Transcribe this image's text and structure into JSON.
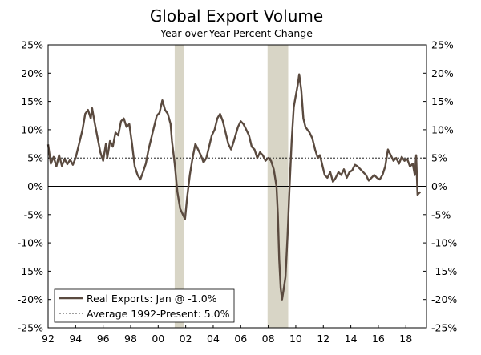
{
  "chart_data": {
    "type": "line",
    "title": "Global Export Volume",
    "subtitle": "Year-over-Year Percent Change",
    "x_tick_labels": [
      "92",
      "94",
      "96",
      "98",
      "00",
      "02",
      "04",
      "06",
      "08",
      "10",
      "12",
      "14",
      "16",
      "18"
    ],
    "x_tick_years": [
      1992,
      1994,
      1996,
      1998,
      2000,
      2002,
      2004,
      2006,
      2008,
      2010,
      2012,
      2014,
      2016,
      2018
    ],
    "xlim": [
      1992,
      2019.5
    ],
    "y_tick_labels": [
      "25%",
      "20%",
      "15%",
      "10%",
      "5%",
      "0%",
      "-5%",
      "-10%",
      "-15%",
      "-20%",
      "-25%"
    ],
    "y_tick_values": [
      25,
      20,
      15,
      10,
      5,
      0,
      -5,
      -10,
      -15,
      -20,
      -25
    ],
    "ylim": [
      -25,
      25
    ],
    "recessions": [
      [
        2001.2,
        2001.9
      ],
      [
        2007.95,
        2009.45
      ]
    ],
    "average_value": 5.0,
    "colors": {
      "line": "#5a4a3f",
      "recession": "#d8d5c6",
      "axis": "#000000"
    },
    "series": [
      {
        "name": "Real Exports: Jan @ -1.0%",
        "points": [
          [
            1992.0,
            7.4
          ],
          [
            1992.2,
            4.0
          ],
          [
            1992.4,
            5.2
          ],
          [
            1992.6,
            3.5
          ],
          [
            1992.8,
            5.5
          ],
          [
            1993.0,
            3.6
          ],
          [
            1993.2,
            4.8
          ],
          [
            1993.4,
            3.9
          ],
          [
            1993.6,
            4.7
          ],
          [
            1993.8,
            3.8
          ],
          [
            1994.0,
            5.0
          ],
          [
            1994.3,
            8.0
          ],
          [
            1994.5,
            10.0
          ],
          [
            1994.7,
            12.8
          ],
          [
            1994.9,
            13.5
          ],
          [
            1995.1,
            12.0
          ],
          [
            1995.2,
            13.8
          ],
          [
            1995.4,
            11.0
          ],
          [
            1995.6,
            8.5
          ],
          [
            1995.8,
            6.0
          ],
          [
            1996.0,
            4.5
          ],
          [
            1996.2,
            7.5
          ],
          [
            1996.3,
            5.0
          ],
          [
            1996.5,
            8.0
          ],
          [
            1996.7,
            7.0
          ],
          [
            1996.9,
            9.5
          ],
          [
            1997.1,
            9.0
          ],
          [
            1997.3,
            11.5
          ],
          [
            1997.5,
            12.0
          ],
          [
            1997.7,
            10.5
          ],
          [
            1997.9,
            11.0
          ],
          [
            1998.1,
            7.5
          ],
          [
            1998.3,
            3.5
          ],
          [
            1998.5,
            2.0
          ],
          [
            1998.7,
            1.2
          ],
          [
            1998.9,
            2.5
          ],
          [
            1999.1,
            4.0
          ],
          [
            1999.3,
            6.5
          ],
          [
            1999.6,
            9.5
          ],
          [
            1999.9,
            12.5
          ],
          [
            2000.1,
            13.0
          ],
          [
            2000.3,
            15.2
          ],
          [
            2000.5,
            13.5
          ],
          [
            2000.7,
            12.8
          ],
          [
            2000.9,
            11.0
          ],
          [
            2001.0,
            8.0
          ],
          [
            2001.2,
            4.0
          ],
          [
            2001.4,
            -1.0
          ],
          [
            2001.6,
            -4.0
          ],
          [
            2001.8,
            -5.0
          ],
          [
            2001.95,
            -5.8
          ],
          [
            2002.1,
            -2.0
          ],
          [
            2002.3,
            2.0
          ],
          [
            2002.5,
            5.0
          ],
          [
            2002.7,
            7.5
          ],
          [
            2002.9,
            6.5
          ],
          [
            2003.1,
            5.5
          ],
          [
            2003.3,
            4.2
          ],
          [
            2003.5,
            5.0
          ],
          [
            2003.7,
            7.0
          ],
          [
            2003.9,
            9.0
          ],
          [
            2004.1,
            10.0
          ],
          [
            2004.3,
            12.0
          ],
          [
            2004.5,
            12.8
          ],
          [
            2004.7,
            11.5
          ],
          [
            2004.9,
            9.5
          ],
          [
            2005.1,
            7.5
          ],
          [
            2005.3,
            6.5
          ],
          [
            2005.5,
            8.0
          ],
          [
            2005.8,
            10.5
          ],
          [
            2006.0,
            11.5
          ],
          [
            2006.2,
            11.0
          ],
          [
            2006.4,
            10.0
          ],
          [
            2006.6,
            9.0
          ],
          [
            2006.8,
            7.0
          ],
          [
            2007.0,
            6.5
          ],
          [
            2007.2,
            5.0
          ],
          [
            2007.4,
            6.0
          ],
          [
            2007.6,
            5.5
          ],
          [
            2007.8,
            4.5
          ],
          [
            2008.0,
            5.0
          ],
          [
            2008.2,
            4.5
          ],
          [
            2008.4,
            3.0
          ],
          [
            2008.6,
            0.0
          ],
          [
            2008.7,
            -5.0
          ],
          [
            2008.8,
            -13.0
          ],
          [
            2008.9,
            -18.0
          ],
          [
            2009.0,
            -20.0
          ],
          [
            2009.1,
            -18.5
          ],
          [
            2009.25,
            -16.0
          ],
          [
            2009.4,
            -9.0
          ],
          [
            2009.55,
            0.0
          ],
          [
            2009.7,
            8.0
          ],
          [
            2009.85,
            14.0
          ],
          [
            2010.0,
            16.0
          ],
          [
            2010.15,
            18.0
          ],
          [
            2010.25,
            19.8
          ],
          [
            2010.4,
            17.0
          ],
          [
            2010.55,
            12.0
          ],
          [
            2010.7,
            10.5
          ],
          [
            2010.85,
            10.0
          ],
          [
            2011.0,
            9.5
          ],
          [
            2011.2,
            8.5
          ],
          [
            2011.4,
            6.5
          ],
          [
            2011.6,
            5.0
          ],
          [
            2011.75,
            5.5
          ],
          [
            2011.9,
            4.0
          ],
          [
            2012.1,
            2.0
          ],
          [
            2012.3,
            1.5
          ],
          [
            2012.5,
            2.5
          ],
          [
            2012.7,
            0.8
          ],
          [
            2012.9,
            1.5
          ],
          [
            2013.1,
            2.5
          ],
          [
            2013.3,
            2.0
          ],
          [
            2013.5,
            3.0
          ],
          [
            2013.7,
            1.5
          ],
          [
            2013.9,
            2.5
          ],
          [
            2014.1,
            2.8
          ],
          [
            2014.3,
            3.8
          ],
          [
            2014.5,
            3.5
          ],
          [
            2014.7,
            3.0
          ],
          [
            2014.9,
            2.5
          ],
          [
            2015.1,
            2.0
          ],
          [
            2015.3,
            1.0
          ],
          [
            2015.5,
            1.5
          ],
          [
            2015.7,
            2.0
          ],
          [
            2015.9,
            1.5
          ],
          [
            2016.1,
            1.2
          ],
          [
            2016.3,
            2.0
          ],
          [
            2016.5,
            3.5
          ],
          [
            2016.7,
            6.5
          ],
          [
            2016.9,
            5.5
          ],
          [
            2017.1,
            4.5
          ],
          [
            2017.3,
            5.0
          ],
          [
            2017.5,
            4.0
          ],
          [
            2017.7,
            5.2
          ],
          [
            2017.9,
            4.5
          ],
          [
            2018.1,
            4.8
          ],
          [
            2018.3,
            3.5
          ],
          [
            2018.5,
            4.0
          ],
          [
            2018.65,
            2.0
          ],
          [
            2018.75,
            5.5
          ],
          [
            2018.85,
            -1.5
          ],
          [
            2018.95,
            -1.2
          ],
          [
            2019.05,
            -1.0
          ]
        ]
      }
    ],
    "legend": [
      {
        "label": "Real Exports: Jan @ -1.0%",
        "style": "solid"
      },
      {
        "label": "Average 1992-Present: 5.0%",
        "style": "dashed"
      }
    ],
    "legend_position": "bottom-left"
  }
}
